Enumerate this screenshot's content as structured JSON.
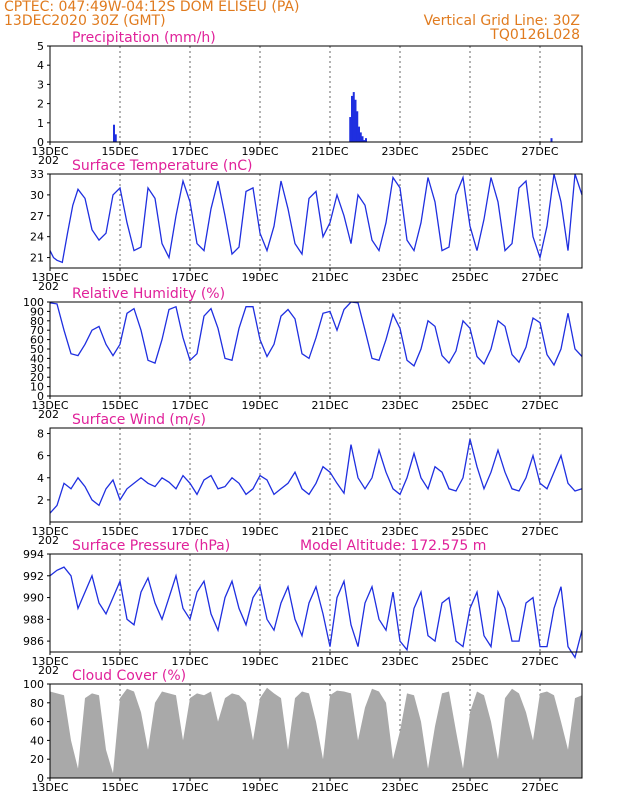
{
  "header": {
    "line1": "CPTEC:   047:49W-04:12S   DOM ELISEU (PA)",
    "line2": "13DEC2020 30Z (GMT)",
    "right1": "Vertical Grid Line: 30Z",
    "right2": "TQ0126L028"
  },
  "colors": {
    "header": "#e07b1f",
    "title": "#e0219a",
    "series": "#1f2fe0",
    "cloud": "#a9a9a9",
    "text": "#000000"
  },
  "x_ticks": [
    "13DEC",
    "15DEC",
    "17DEC",
    "19DEC",
    "21DEC",
    "23DEC",
    "25DEC",
    "27DEC"
  ],
  "x_tick_days": [
    0,
    2,
    4,
    6,
    8,
    10,
    12,
    14
  ],
  "cutoff_label": "202",
  "chart_data": [
    {
      "id": "precip",
      "type": "bar",
      "title": "Precipitation (mm/h)",
      "ylim": [
        0,
        5
      ],
      "yticks": [
        0,
        1,
        2,
        3,
        4,
        5
      ],
      "xlim_days": [
        0,
        15.2
      ],
      "x_days": [
        1.8,
        1.85,
        8.55,
        8.6,
        8.65,
        8.7,
        8.75,
        8.8,
        8.85,
        8.9,
        8.95,
        9.0,
        14.3
      ],
      "values": [
        0.9,
        0.4,
        1.3,
        2.4,
        2.6,
        2.2,
        1.6,
        0.8,
        0.5,
        0.3,
        0.1,
        0.2,
        0.2
      ]
    },
    {
      "id": "temp",
      "type": "line",
      "title": "Surface Temperature (nC)",
      "ylim": [
        19.5,
        33
      ],
      "yticks": [
        21,
        24,
        27,
        30,
        33
      ],
      "xlim_days": [
        0,
        15.2
      ],
      "x_days": [
        0.0,
        0.1,
        0.2,
        0.35,
        0.5,
        0.65,
        0.8,
        1.0,
        1.2,
        1.4,
        1.6,
        1.8,
        2.0,
        2.2,
        2.4,
        2.6,
        2.8,
        3.0,
        3.2,
        3.4,
        3.6,
        3.8,
        4.0,
        4.2,
        4.4,
        4.6,
        4.8,
        5.0,
        5.2,
        5.4,
        5.6,
        5.8,
        6.0,
        6.2,
        6.4,
        6.6,
        6.8,
        7.0,
        7.2,
        7.4,
        7.6,
        7.8,
        8.0,
        8.2,
        8.4,
        8.6,
        8.8,
        9.0,
        9.2,
        9.4,
        9.6,
        9.8,
        10.0,
        10.2,
        10.4,
        10.6,
        10.8,
        11.0,
        11.2,
        11.4,
        11.6,
        11.8,
        12.0,
        12.2,
        12.4,
        12.6,
        12.8,
        13.0,
        13.2,
        13.4,
        13.6,
        13.8,
        14.0,
        14.2,
        14.4,
        14.6,
        14.8,
        15.0,
        15.2
      ],
      "values": [
        22.0,
        21.0,
        20.6,
        20.3,
        24.5,
        28.5,
        30.8,
        29.5,
        25.0,
        23.5,
        24.5,
        30.0,
        31.0,
        26.0,
        22.0,
        22.5,
        31.0,
        29.5,
        23.0,
        21.0,
        27.0,
        32.0,
        29.0,
        23.0,
        22.0,
        28.0,
        32.0,
        27.0,
        21.5,
        22.5,
        30.5,
        31.0,
        24.5,
        22.0,
        25.5,
        32.0,
        28.0,
        23.0,
        21.5,
        29.5,
        30.5,
        24.0,
        26.0,
        30.0,
        27.0,
        23.0,
        30.0,
        28.5,
        23.5,
        22.0,
        26.0,
        32.5,
        31.0,
        23.5,
        22.0,
        26.0,
        32.5,
        29.0,
        22.0,
        22.5,
        30.0,
        32.5,
        25.5,
        22.0,
        26.5,
        32.5,
        29.0,
        22.0,
        23.0,
        31.0,
        32.0,
        24.0,
        21.0,
        25.5,
        33.0,
        29.0,
        22.0,
        33.0,
        30.0
      ]
    },
    {
      "id": "rh",
      "type": "line",
      "title": "Relative Humidity (%)",
      "ylim": [
        0,
        100
      ],
      "yticks": [
        0,
        10,
        20,
        30,
        40,
        50,
        60,
        70,
        80,
        90,
        100
      ],
      "xlim_days": [
        0,
        15.2
      ],
      "x_days": [
        0.0,
        0.2,
        0.4,
        0.6,
        0.8,
        1.0,
        1.2,
        1.4,
        1.6,
        1.8,
        2.0,
        2.2,
        2.4,
        2.6,
        2.8,
        3.0,
        3.2,
        3.4,
        3.6,
        3.8,
        4.0,
        4.2,
        4.4,
        4.6,
        4.8,
        5.0,
        5.2,
        5.4,
        5.6,
        5.8,
        6.0,
        6.2,
        6.4,
        6.6,
        6.8,
        7.0,
        7.2,
        7.4,
        7.6,
        7.8,
        8.0,
        8.2,
        8.4,
        8.6,
        8.8,
        9.0,
        9.2,
        9.4,
        9.6,
        9.8,
        10.0,
        10.2,
        10.4,
        10.6,
        10.8,
        11.0,
        11.2,
        11.4,
        11.6,
        11.8,
        12.0,
        12.2,
        12.4,
        12.6,
        12.8,
        13.0,
        13.2,
        13.4,
        13.6,
        13.8,
        14.0,
        14.2,
        14.4,
        14.6,
        14.8,
        15.0,
        15.2
      ],
      "values": [
        99,
        98,
        70,
        45,
        43,
        55,
        70,
        74,
        55,
        43,
        55,
        88,
        93,
        70,
        38,
        35,
        60,
        92,
        95,
        62,
        38,
        45,
        85,
        93,
        72,
        40,
        38,
        72,
        95,
        95,
        60,
        42,
        55,
        85,
        92,
        82,
        45,
        40,
        62,
        88,
        90,
        70,
        92,
        100,
        99,
        70,
        40,
        38,
        60,
        87,
        72,
        38,
        32,
        50,
        80,
        74,
        43,
        35,
        48,
        80,
        72,
        42,
        34,
        50,
        80,
        74,
        44,
        36,
        52,
        83,
        78,
        44,
        33,
        50,
        88,
        50,
        42
      ]
    },
    {
      "id": "wind",
      "type": "line",
      "title": "Surface Wind (m/s)",
      "ylim": [
        0,
        8.5
      ],
      "yticks": [
        2,
        4,
        6,
        8
      ],
      "xlim_days": [
        0,
        15.2
      ],
      "x_days": [
        0.0,
        0.2,
        0.4,
        0.6,
        0.8,
        1.0,
        1.2,
        1.4,
        1.6,
        1.8,
        2.0,
        2.2,
        2.4,
        2.6,
        2.8,
        3.0,
        3.2,
        3.4,
        3.6,
        3.8,
        4.0,
        4.2,
        4.4,
        4.6,
        4.8,
        5.0,
        5.2,
        5.4,
        5.6,
        5.8,
        6.0,
        6.2,
        6.4,
        6.6,
        6.8,
        7.0,
        7.2,
        7.4,
        7.6,
        7.8,
        8.0,
        8.2,
        8.4,
        8.6,
        8.8,
        9.0,
        9.2,
        9.4,
        9.6,
        9.8,
        10.0,
        10.2,
        10.4,
        10.6,
        10.8,
        11.0,
        11.2,
        11.4,
        11.6,
        11.8,
        12.0,
        12.2,
        12.4,
        12.6,
        12.8,
        13.0,
        13.2,
        13.4,
        13.6,
        13.8,
        14.0,
        14.2,
        14.4,
        14.6,
        14.8,
        15.0,
        15.2
      ],
      "values": [
        0.8,
        1.5,
        3.5,
        3.0,
        4.0,
        3.2,
        2.0,
        1.5,
        3.0,
        3.8,
        2.0,
        3.0,
        3.5,
        4.0,
        3.5,
        3.2,
        4.0,
        3.6,
        3.0,
        4.2,
        3.5,
        2.5,
        3.8,
        4.2,
        3.0,
        3.2,
        4.0,
        3.5,
        2.5,
        3.0,
        4.2,
        3.8,
        2.5,
        3.0,
        3.5,
        4.5,
        3.0,
        2.5,
        3.5,
        5.0,
        4.5,
        3.5,
        2.6,
        7.0,
        4.0,
        3.0,
        4.0,
        6.5,
        4.5,
        3.0,
        2.5,
        4.0,
        6.2,
        4.0,
        3.0,
        5.0,
        4.5,
        3.0,
        2.8,
        4.0,
        7.5,
        5.0,
        3.0,
        4.5,
        6.5,
        4.5,
        3.0,
        2.8,
        4.0,
        6.0,
        3.5,
        3.0,
        4.5,
        6.0,
        3.5,
        2.8,
        3.0
      ]
    },
    {
      "id": "pressure",
      "type": "line",
      "title": "Surface Pressure (hPa)",
      "extra_label": "Model Altitude: 172.575  m",
      "ylim": [
        985,
        994
      ],
      "yticks": [
        986,
        988,
        990,
        992,
        994
      ],
      "xlim_days": [
        0,
        15.2
      ],
      "x_days": [
        0.0,
        0.2,
        0.4,
        0.6,
        0.8,
        1.0,
        1.2,
        1.4,
        1.6,
        1.8,
        2.0,
        2.2,
        2.4,
        2.6,
        2.8,
        3.0,
        3.2,
        3.4,
        3.6,
        3.8,
        4.0,
        4.2,
        4.4,
        4.6,
        4.8,
        5.0,
        5.2,
        5.4,
        5.6,
        5.8,
        6.0,
        6.2,
        6.4,
        6.6,
        6.8,
        7.0,
        7.2,
        7.4,
        7.6,
        7.8,
        8.0,
        8.2,
        8.4,
        8.6,
        8.8,
        9.0,
        9.2,
        9.4,
        9.6,
        9.8,
        10.0,
        10.2,
        10.4,
        10.6,
        10.8,
        11.0,
        11.2,
        11.4,
        11.6,
        11.8,
        12.0,
        12.2,
        12.4,
        12.6,
        12.8,
        13.0,
        13.2,
        13.4,
        13.6,
        13.8,
        14.0,
        14.2,
        14.4,
        14.6,
        14.8,
        15.0,
        15.2
      ],
      "values": [
        992.0,
        992.5,
        992.8,
        992.0,
        989.0,
        990.5,
        992.0,
        989.5,
        988.5,
        990.0,
        991.5,
        988.0,
        987.5,
        990.5,
        991.8,
        989.5,
        988.0,
        990.0,
        992.0,
        989.0,
        988.0,
        990.5,
        991.5,
        988.5,
        987.0,
        990.0,
        991.5,
        989.0,
        987.5,
        990.0,
        991.0,
        988.0,
        987.0,
        989.5,
        991.0,
        988.0,
        986.5,
        989.5,
        991.0,
        988.5,
        985.5,
        990.0,
        991.5,
        987.5,
        985.5,
        989.5,
        991.0,
        988.0,
        987.0,
        990.5,
        986.0,
        985.2,
        989.0,
        990.5,
        986.5,
        986.0,
        989.5,
        990.0,
        986.0,
        985.5,
        989.0,
        990.5,
        986.5,
        985.5,
        990.5,
        989.0,
        986.0,
        986.0,
        989.5,
        990.0,
        985.5,
        985.5,
        989.0,
        991.0,
        985.5,
        984.5,
        987.0
      ]
    },
    {
      "id": "cloud",
      "type": "area",
      "title": "Cloud Cover (%)",
      "ylim": [
        0,
        100
      ],
      "yticks": [
        0,
        20,
        40,
        60,
        80,
        100
      ],
      "xlim_days": [
        0,
        15.2
      ],
      "x_days": [
        0.0,
        0.2,
        0.4,
        0.6,
        0.8,
        1.0,
        1.2,
        1.4,
        1.6,
        1.8,
        2.0,
        2.2,
        2.4,
        2.6,
        2.8,
        3.0,
        3.2,
        3.4,
        3.6,
        3.8,
        4.0,
        4.2,
        4.4,
        4.6,
        4.8,
        5.0,
        5.2,
        5.4,
        5.6,
        5.8,
        6.0,
        6.2,
        6.4,
        6.6,
        6.8,
        7.0,
        7.2,
        7.4,
        7.6,
        7.8,
        8.0,
        8.2,
        8.4,
        8.6,
        8.8,
        9.0,
        9.2,
        9.4,
        9.6,
        9.8,
        10.0,
        10.2,
        10.4,
        10.6,
        10.8,
        11.0,
        11.2,
        11.4,
        11.6,
        11.8,
        12.0,
        12.2,
        12.4,
        12.6,
        12.8,
        13.0,
        13.2,
        13.4,
        13.6,
        13.8,
        14.0,
        14.2,
        14.4,
        14.6,
        14.8,
        15.0,
        15.2
      ],
      "values": [
        92,
        90,
        88,
        40,
        10,
        85,
        90,
        88,
        30,
        5,
        85,
        95,
        92,
        70,
        30,
        80,
        92,
        90,
        88,
        40,
        85,
        90,
        88,
        92,
        60,
        85,
        90,
        88,
        80,
        40,
        85,
        96,
        90,
        85,
        30,
        85,
        92,
        90,
        60,
        20,
        88,
        93,
        92,
        90,
        40,
        75,
        95,
        92,
        80,
        20,
        50,
        90,
        88,
        60,
        10,
        55,
        90,
        92,
        50,
        10,
        70,
        92,
        88,
        60,
        20,
        85,
        95,
        90,
        70,
        40,
        90,
        92,
        88,
        60,
        30,
        85,
        88
      ]
    }
  ]
}
